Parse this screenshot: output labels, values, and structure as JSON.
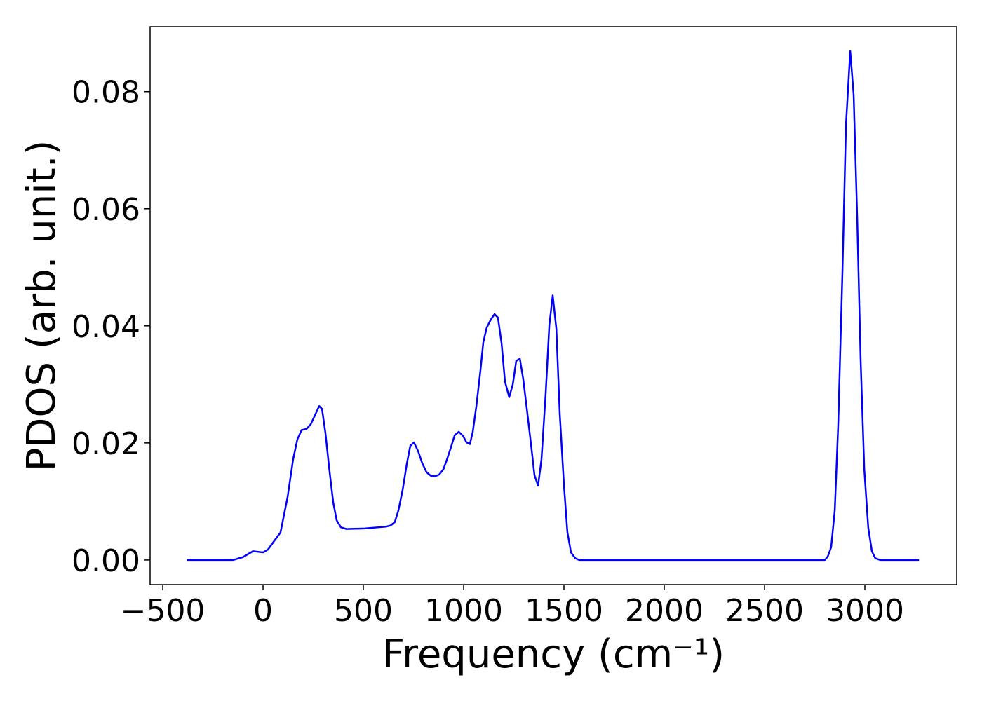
{
  "chart_data": {
    "type": "line",
    "xlabel": "Frequency (cm⁻¹)",
    "ylabel": "PDOS (arb. unit.)",
    "x": [
      -380,
      -150,
      -100,
      -50,
      0,
      25,
      50,
      87,
      122,
      150,
      171,
      192,
      217,
      238,
      280,
      294,
      311,
      332,
      350,
      367,
      388,
      416,
      507,
      612,
      636,
      657,
      675,
      696,
      717,
      734,
      752,
      773,
      794,
      815,
      836,
      857,
      878,
      899,
      916,
      937,
      955,
      976,
      997,
      1014,
      1031,
      1045,
      1063,
      1084,
      1098,
      1115,
      1136,
      1154,
      1171,
      1189,
      1206,
      1227,
      1245,
      1262,
      1280,
      1297,
      1315,
      1336,
      1353,
      1371,
      1388,
      1409,
      1427,
      1444,
      1462,
      1479,
      1500,
      1517,
      1535,
      1556,
      1577,
      2800,
      2815,
      2832,
      2850,
      2867,
      2888,
      2906,
      2927,
      2944,
      2962,
      2979,
      2997,
      3017,
      3035,
      3052,
      3077,
      3270
    ],
    "series": [
      {
        "color": "#0000ff",
        "values": [
          0,
          0,
          0.0005,
          0.0015,
          0.0013,
          0.0018,
          0.003,
          0.0047,
          0.0107,
          0.0172,
          0.0206,
          0.0222,
          0.0224,
          0.0232,
          0.0263,
          0.0258,
          0.0217,
          0.015,
          0.0098,
          0.0068,
          0.0056,
          0.0053,
          0.0054,
          0.0057,
          0.0059,
          0.0065,
          0.0085,
          0.012,
          0.0165,
          0.0195,
          0.0201,
          0.0186,
          0.0165,
          0.015,
          0.0144,
          0.0143,
          0.0146,
          0.0155,
          0.0171,
          0.0193,
          0.0213,
          0.0219,
          0.0212,
          0.0201,
          0.0198,
          0.0218,
          0.0262,
          0.0325,
          0.0372,
          0.0397,
          0.0411,
          0.042,
          0.0414,
          0.037,
          0.0305,
          0.0278,
          0.03,
          0.034,
          0.0344,
          0.0309,
          0.0258,
          0.0197,
          0.0145,
          0.0127,
          0.0172,
          0.0285,
          0.0401,
          0.0452,
          0.0395,
          0.025,
          0.0128,
          0.0048,
          0.0013,
          0.0003,
          0,
          0,
          0.0006,
          0.0022,
          0.0085,
          0.023,
          0.049,
          0.0745,
          0.0869,
          0.0795,
          0.058,
          0.034,
          0.0155,
          0.0055,
          0.0015,
          0.0003,
          0,
          0
        ]
      }
    ],
    "xlim": [
      -563,
      3458
    ],
    "ylim": [
      -0.0042,
      0.0911
    ],
    "xticks": [
      {
        "value": -500,
        "label": "−500"
      },
      0,
      500,
      1000,
      1500,
      2000,
      2500,
      3000
    ],
    "yticks": [
      {
        "value": 0,
        "label": "0.00"
      },
      {
        "value": 0.02,
        "label": "0.02"
      },
      {
        "value": 0.04,
        "label": "0.04"
      },
      {
        "value": 0.06,
        "label": "0.06"
      },
      {
        "value": 0.08,
        "label": "0.08"
      }
    ],
    "grid": false
  }
}
